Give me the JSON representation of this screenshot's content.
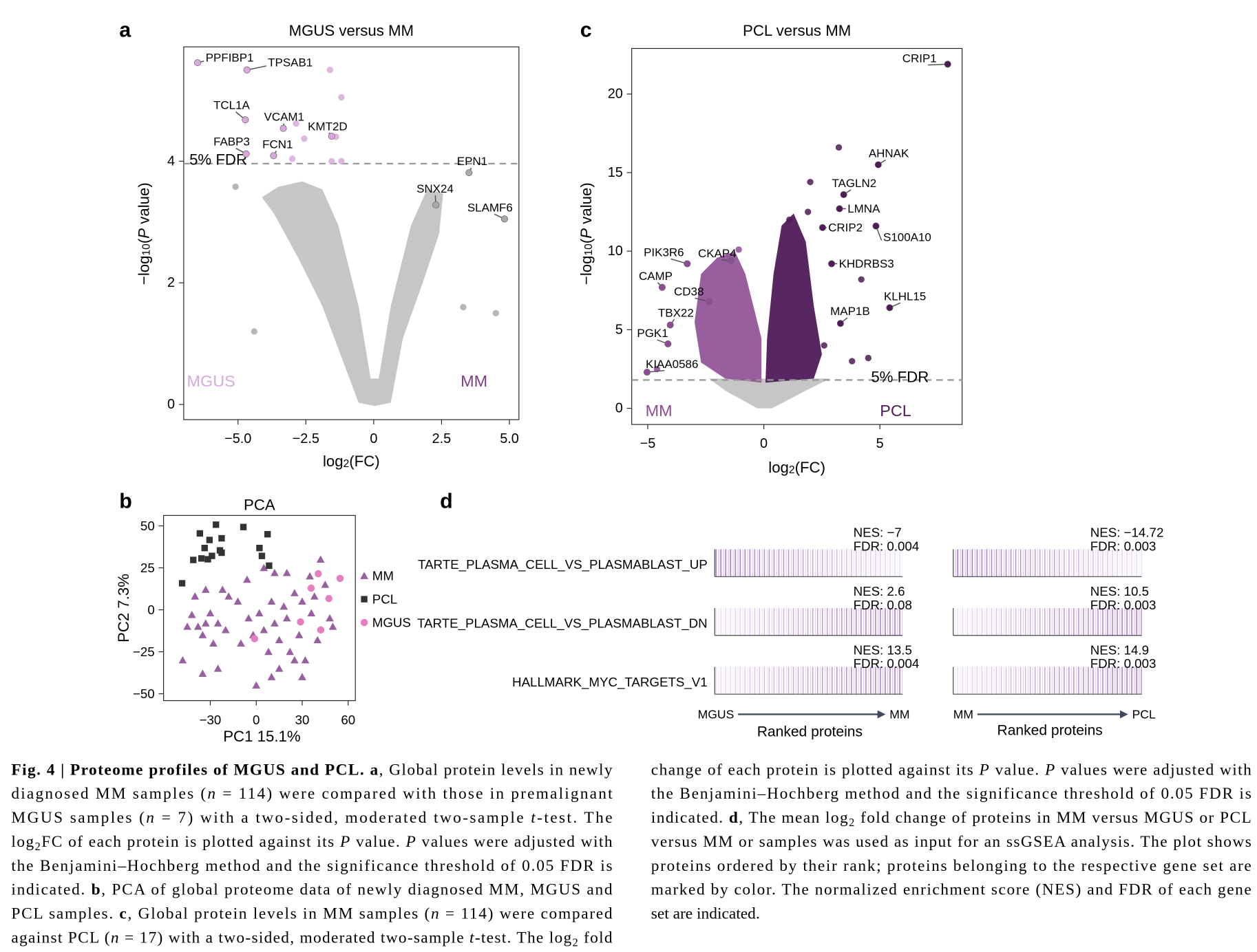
{
  "panel_labels": [
    "a",
    "b",
    "c",
    "d"
  ],
  "chart_data": [
    {
      "type": "volcano",
      "title": "MGUS versus MM",
      "x_label": [
        "log",
        {
          "sub": "2"
        },
        "(FC)"
      ],
      "y_label": [
        "−log",
        {
          "sub": "10"
        },
        "(",
        {
          "i": "P"
        },
        " value)"
      ],
      "xlim": [
        -7.0,
        5.35
      ],
      "ylim": [
        -0.25,
        5.88
      ],
      "xticks": [
        {
          "value": -5,
          "label": "−5.0"
        },
        {
          "value": -2.5,
          "label": "−2.5"
        },
        0,
        2.5,
        {
          "value": 5,
          "label": "5.0"
        }
      ],
      "yticks": [
        0,
        2,
        4
      ],
      "threshold": 3.96,
      "threshold_label": "5% FDR",
      "group_labels": [
        "MGUS",
        "MM"
      ],
      "group_colors": [
        "#d9a8dc",
        "#7b3f85"
      ],
      "neutral_color": "#aaaaaa",
      "genes": [
        "PPFIBP1",
        "TPSAB1",
        "TCL1A",
        "VCAM1",
        "KMT2D",
        "FABP3",
        "FCN1",
        "EPN1",
        "SNX24",
        "SLAMF6"
      ],
      "x": [
        -6.49,
        -4.67,
        -4.73,
        -3.33,
        -1.55,
        -4.7,
        -3.69,
        3.51,
        2.29,
        4.82
      ],
      "y": [
        5.62,
        5.5,
        4.68,
        4.54,
        4.41,
        4.12,
        4.09,
        3.81,
        3.28,
        3.05
      ],
      "other_x": [
        -1.61,
        -1.19,
        -2.56,
        -3.0,
        -1.55,
        -1.19,
        -2.86,
        -1.39,
        -5.09,
        -4.4,
        3.3,
        4.5
      ],
      "other_y": [
        5.5,
        5.05,
        4.37,
        4.04,
        4.0,
        4.0,
        4.62,
        4.4,
        3.58,
        1.2,
        1.6,
        1.5
      ]
    },
    {
      "type": "volcano",
      "title": "PCL versus MM",
      "x_label": [
        "log",
        {
          "sub": "2"
        },
        "(FC)"
      ],
      "y_label": [
        "−log",
        {
          "sub": "10"
        },
        "(",
        {
          "i": "P"
        },
        " value)"
      ],
      "xlim": [
        -5.69,
        8.54
      ],
      "ylim": [
        -1.03,
        22.9
      ],
      "xticks": [
        {
          "value": -5,
          "label": "−5"
        },
        0,
        5
      ],
      "yticks": [
        0,
        5,
        10,
        15,
        20
      ],
      "threshold": 1.8,
      "threshold_label": "5% FDR",
      "group_labels": [
        "MM",
        "PCL"
      ],
      "group_colors": [
        "#8e4c94",
        "#4f1a57"
      ],
      "neutral_color": "#aaaaaa",
      "genes": [
        "CRIP1",
        "AHNAK",
        "TAGLN2",
        "LMNA",
        "CRIP2",
        "S100A10",
        "KHDRBS3",
        "KLHL15",
        "MAP1B",
        "PIK3R6",
        "CKAP4",
        "CAMP",
        "CD38",
        "TBX22",
        "PGK1",
        "KIAA0586"
      ],
      "x": [
        7.92,
        4.93,
        3.44,
        3.26,
        2.53,
        4.83,
        2.92,
        5.42,
        3.3,
        -3.3,
        -1.42,
        -4.38,
        -2.36,
        -4.03,
        -4.13,
        -5.03
      ],
      "y": [
        21.9,
        15.5,
        13.6,
        12.7,
        11.5,
        11.6,
        9.2,
        6.4,
        5.4,
        9.2,
        9.4,
        7.7,
        6.8,
        5.3,
        4.1,
        2.3
      ],
      "other_x": [
        3.23,
        2.0,
        -1.08,
        1.9,
        1.1,
        4.2,
        3.8,
        4.5,
        -4.6,
        2.6
      ],
      "other_y": [
        16.6,
        14.4,
        10.1,
        12.5,
        12.0,
        8.2,
        3.0,
        3.2,
        2.5,
        4.0
      ]
    },
    {
      "type": "scatter",
      "title": "PCA",
      "x_label": [
        "PC1 15.1%"
      ],
      "y_label": [
        "PC2 7.3%"
      ],
      "xlim": [
        -60.5,
        64.7
      ],
      "ylim": [
        -54.1,
        56.2
      ],
      "xticks": [
        {
          "value": -30,
          "label": "−30"
        },
        0,
        30,
        60
      ],
      "yticks": [
        {
          "value": -50,
          "label": "−50"
        },
        {
          "value": -25,
          "label": "−25"
        },
        0,
        25,
        50
      ],
      "series": [
        {
          "name": "MM",
          "color": "#8c4f93",
          "marker": "triangle",
          "x": [
            -45,
            -42,
            -38,
            -35,
            -33,
            -30,
            -28,
            -25,
            -40,
            -33,
            -22,
            -18,
            -12,
            -5,
            -2,
            2,
            5,
            8,
            10,
            12,
            15,
            18,
            20,
            22,
            25,
            28,
            30,
            32,
            35,
            36,
            38,
            40,
            42,
            45,
            48,
            50,
            -25,
            -48,
            0,
            10,
            -10,
            -20,
            5,
            12,
            20,
            -6,
            30,
            15,
            25,
            -35
          ],
          "y": [
            -10,
            -3,
            -10,
            -15,
            -8,
            -2,
            -20,
            -8,
            8,
            12,
            12,
            8,
            5,
            -5,
            -15,
            -2,
            -12,
            -25,
            5,
            -8,
            -18,
            2,
            -5,
            -25,
            10,
            -15,
            5,
            -30,
            20,
            -2,
            8,
            -18,
            30,
            15,
            -5,
            -10,
            -35,
            -30,
            -45,
            -40,
            -20,
            -12,
            25,
            22,
            22,
            18,
            -40,
            -35,
            -30,
            -38
          ]
        },
        {
          "name": "PCL",
          "color": "#333333",
          "marker": "square",
          "x": [
            -36.8,
            -26.3,
            -8.4,
            7.4,
            -30.5,
            -22.6,
            -33.7,
            -28.9,
            -23.7,
            -35.8,
            -31.6,
            2.1,
            8.4,
            -48.4,
            -41.1,
            -22.6,
            3.7
          ],
          "y": [
            45.5,
            50.7,
            49.3,
            45.0,
            41.6,
            42.6,
            36.8,
            32.1,
            35.4,
            30.6,
            30.1,
            36.8,
            26.3,
            15.8,
            29.7,
            34.0,
            32.1
          ]
        },
        {
          "name": "MGUS",
          "color": "#e57fbf",
          "marker": "circle",
          "x": [
            40.5,
            54.7,
            35.8,
            47.4,
            28.9,
            42.1,
            -1.1
          ],
          "y": [
            21.5,
            18.7,
            12.9,
            6.7,
            -7.2,
            -12.0,
            -17.2
          ]
        }
      ]
    }
  ],
  "gsea": {
    "gene_sets": [
      "TARTE_PLASMA_CELL_VS_PLASMABLAST_UP",
      "TARTE_PLASMA_CELL_VS_PLASMABLAST_DN",
      "HALLMARK_MYC_TARGETS_V1"
    ],
    "comparisons": [
      {
        "from": "MGUS",
        "to": "MM",
        "axis_label": "Ranked proteins",
        "stats": [
          {
            "nes": "NES: −7",
            "fdr": "FDR: 0.004"
          },
          {
            "nes": "NES: 2.6",
            "fdr": "FDR: 0.08"
          },
          {
            "nes": "NES: 13.5",
            "fdr": "FDR: 0.004"
          }
        ]
      },
      {
        "from": "MM",
        "to": "PCL",
        "axis_label": "Ranked proteins",
        "stats": [
          {
            "nes": "NES: −14.72",
            "fdr": "FDR: 0.003"
          },
          {
            "nes": "NES: 10.5",
            "fdr": "FDR: 0.003"
          },
          {
            "nes": "NES: 14.9",
            "fdr": "FDR: 0.003"
          }
        ]
      }
    ]
  },
  "caption": {
    "left": [
      [
        {
          "b": "Fig. 4 | Proteome profiles of MGUS and PCL. a"
        },
        ", Global protein levels in newly"
      ],
      [
        "diagnosed MM samples (",
        {
          "i": "n"
        },
        " = 114) were compared with those in premalignant"
      ],
      [
        "MGUS samples (",
        {
          "i": "n"
        },
        " = 7) with a two-sided, moderated two-sample ",
        {
          "i": "t"
        },
        "-test. The"
      ],
      [
        "log",
        {
          "sub": "2"
        },
        "FC of each protein is plotted against its ",
        {
          "i": "P"
        },
        " value. ",
        {
          "i": "P"
        },
        " values were adjusted with"
      ],
      [
        "the Benjamini–Hochberg method and the significance threshold of 0.05 FDR is"
      ],
      [
        "indicated. ",
        {
          "b": "b"
        },
        ", PCA of global proteome data of newly diagnosed MM, MGUS and"
      ],
      [
        "PCL samples. ",
        {
          "b": "c"
        },
        ", Global protein levels in MM samples (",
        {
          "i": "n"
        },
        " = 114) were compared"
      ],
      [
        "against PCL (",
        {
          "i": "n"
        },
        " = 17) with a two-sided, moderated two-sample ",
        {
          "i": "t"
        },
        "-test. The log",
        {
          "sub": "2"
        },
        " fold"
      ]
    ],
    "right": [
      [
        "change of each protein is plotted against its ",
        {
          "i": "P"
        },
        " value. ",
        {
          "i": "P"
        },
        " values were adjusted with"
      ],
      [
        "the Benjamini–Hochberg method and the significance threshold of 0.05 FDR is"
      ],
      [
        "indicated. ",
        {
          "b": "d"
        },
        ", The mean log",
        {
          "sub": "2"
        },
        " fold change of proteins in MM versus MGUS or PCL"
      ],
      [
        "versus MM or samples was used as input for an ssGSEA analysis. The plot shows"
      ],
      [
        "proteins ordered by their rank; proteins belonging to the respective gene set are"
      ],
      [
        "marked by color. The normalized enrichment score (NES) and FDR of each gene"
      ],
      [
        "set are indicated."
      ]
    ]
  }
}
